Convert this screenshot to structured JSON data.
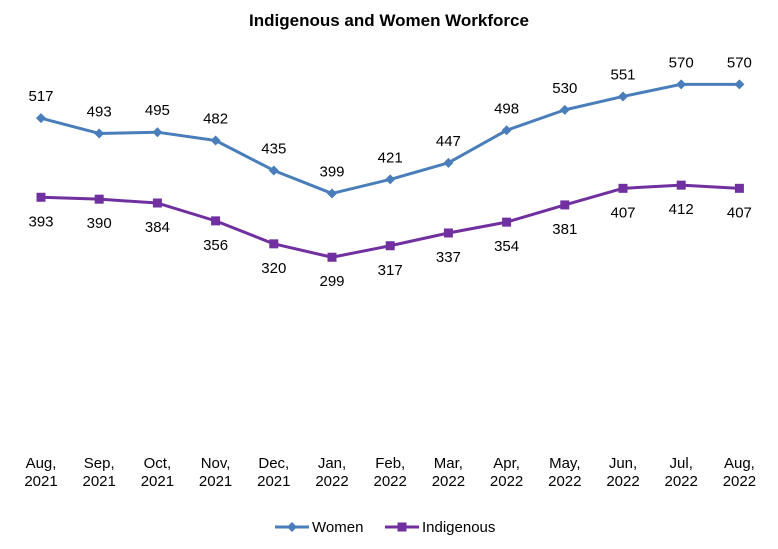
{
  "chart_data": {
    "type": "line",
    "title": "Indigenous and Women Workforce",
    "categories": [
      [
        "Aug,",
        "2021"
      ],
      [
        "Sep,",
        "2021"
      ],
      [
        "Oct,",
        "2021"
      ],
      [
        "Nov,",
        "2021"
      ],
      [
        "Dec,",
        "2021"
      ],
      [
        "Jan,",
        "2022"
      ],
      [
        "Feb,",
        "2022"
      ],
      [
        "Mar,",
        "2022"
      ],
      [
        "Apr,",
        "2022"
      ],
      [
        "May,",
        "2022"
      ],
      [
        "Jun,",
        "2022"
      ],
      [
        "Jul,",
        "2022"
      ],
      [
        "Aug,",
        "2022"
      ]
    ],
    "series": [
      {
        "name": "Women",
        "color": "#4a7ebb",
        "marker": "diamond",
        "label_position": "above",
        "values": [
          517,
          493,
          495,
          482,
          435,
          399,
          421,
          447,
          498,
          530,
          551,
          570,
          570
        ]
      },
      {
        "name": "Indigenous",
        "color": "#7030a0",
        "marker": "square",
        "label_position": "below",
        "values": [
          393,
          390,
          384,
          356,
          320,
          299,
          317,
          337,
          354,
          381,
          407,
          412,
          407
        ]
      }
    ],
    "ylim": [
      0,
      660
    ],
    "grid": false,
    "legend": "bottom"
  }
}
